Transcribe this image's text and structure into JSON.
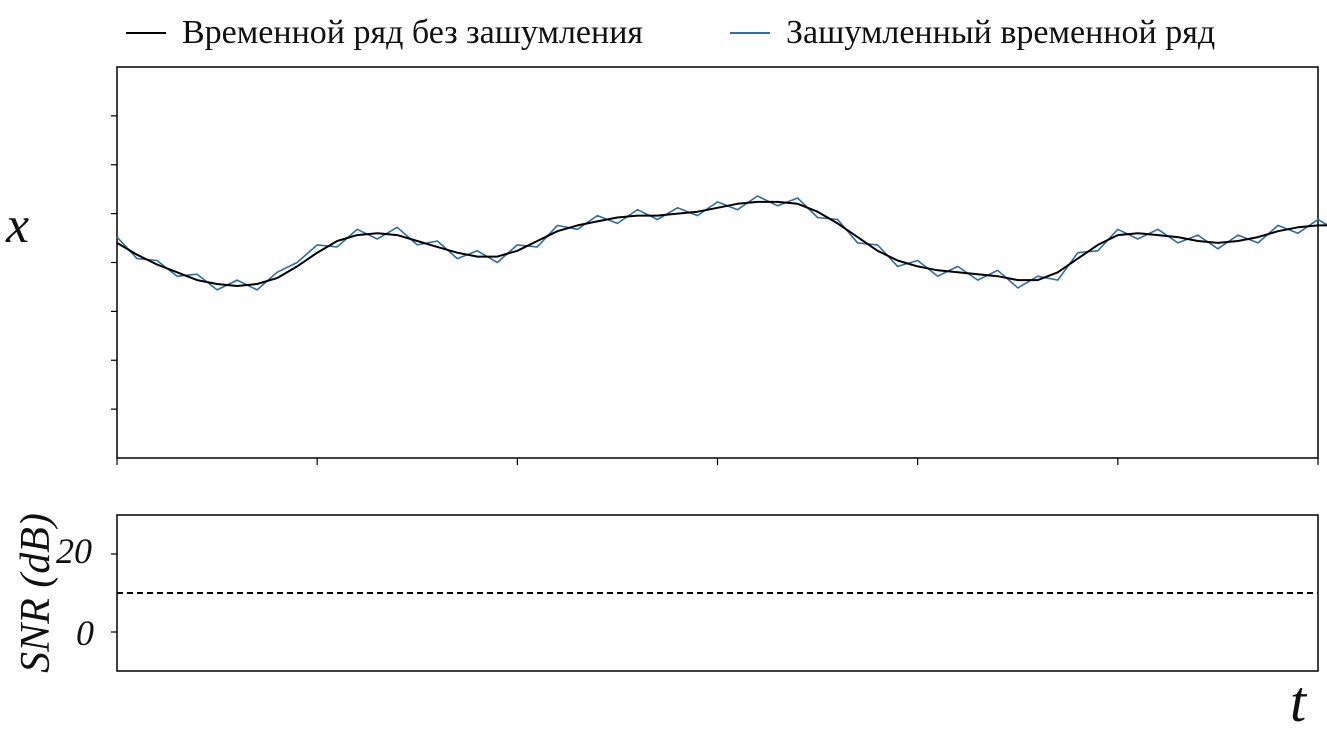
{
  "legend": {
    "clean_label": "Временной ряд без зашумления",
    "noisy_label": "Зашумленный временной ряд"
  },
  "axes": {
    "top_ylabel": "x",
    "bottom_ylabel": "SNR (dB)",
    "xlabel": "t",
    "bottom_ytick_20": "20",
    "bottom_ytick_0": "0"
  },
  "colors": {
    "clean": "#000000",
    "noisy": "#2e6ea6",
    "snr_line": "#000000"
  },
  "chart_data": [
    {
      "type": "line",
      "panel": "top",
      "xlabel": "t",
      "ylabel": "x",
      "xlim": [
        0,
        600
      ],
      "ylim": [
        -1.0,
        1.0
      ],
      "grid": false,
      "legend_position": "above",
      "x_step": 10,
      "series": [
        {
          "name": "Временной ряд без зашумления",
          "values": [
            0.1,
            0.04,
            -0.01,
            -0.05,
            -0.09,
            -0.11,
            -0.12,
            -0.11,
            -0.08,
            -0.02,
            0.05,
            0.11,
            0.14,
            0.15,
            0.14,
            0.11,
            0.08,
            0.05,
            0.03,
            0.03,
            0.06,
            0.11,
            0.16,
            0.19,
            0.21,
            0.23,
            0.24,
            0.24,
            0.25,
            0.26,
            0.28,
            0.3,
            0.31,
            0.31,
            0.3,
            0.26,
            0.2,
            0.13,
            0.06,
            0.01,
            -0.02,
            -0.04,
            -0.05,
            -0.06,
            -0.07,
            -0.09,
            -0.09,
            -0.05,
            0.02,
            0.09,
            0.14,
            0.15,
            0.14,
            0.13,
            0.11,
            0.1,
            0.11,
            0.13,
            0.16,
            0.18,
            0.19,
            0.19,
            0.2,
            0.22,
            0.24,
            0.26,
            0.27,
            0.29,
            0.3,
            0.31,
            0.29,
            0.25,
            0.2,
            0.15,
            0.1,
            0.05,
            0.01,
            -0.02,
            -0.05,
            -0.07,
            -0.09,
            -0.1,
            -0.08,
            -0.04,
            0.02,
            0.08,
            0.13,
            0.16,
            0.17,
            0.16,
            0.14,
            0.12,
            0.1,
            0.09,
            0.1,
            0.13,
            0.15,
            0.16,
            0.16,
            0.14,
            0.15,
            0.17,
            0.19,
            0.21,
            0.22,
            0.23,
            0.24,
            0.26,
            0.27,
            0.28,
            0.29,
            0.28,
            0.25,
            0.21,
            0.16,
            0.11,
            0.06,
            0.02,
            -0.01,
            -0.03,
            -0.06,
            -0.08,
            -0.1,
            -0.11,
            -0.12,
            -0.11,
            -0.08,
            -0.04,
            0.02,
            0.07,
            0.12,
            0.15,
            0.16,
            0.15,
            0.13,
            0.11,
            0.09,
            0.08,
            0.07,
            0.07,
            0.08,
            0.09,
            0.11,
            0.12,
            0.13,
            0.14,
            0.15,
            0.16,
            0.17,
            0.18
          ]
        },
        {
          "name": "Зашумленный временной ряд",
          "values": [
            0.13,
            0.02,
            0.01,
            -0.07,
            -0.06,
            -0.14,
            -0.09,
            -0.14,
            -0.05,
            0.0,
            0.09,
            0.08,
            0.17,
            0.12,
            0.18,
            0.09,
            0.11,
            0.02,
            0.06,
            0.0,
            0.09,
            0.08,
            0.19,
            0.17,
            0.24,
            0.2,
            0.27,
            0.22,
            0.28,
            0.24,
            0.31,
            0.27,
            0.34,
            0.29,
            0.33,
            0.23,
            0.22,
            0.1,
            0.09,
            -0.02,
            0.01,
            -0.07,
            -0.02,
            -0.09,
            -0.04,
            -0.13,
            -0.07,
            -0.09,
            0.05,
            0.06,
            0.17,
            0.12,
            0.17,
            0.1,
            0.14,
            0.07,
            0.14,
            0.1,
            0.19,
            0.15,
            0.22,
            0.16,
            0.23,
            0.19,
            0.27,
            0.23,
            0.3,
            0.26,
            0.33,
            0.28,
            0.32,
            0.22,
            0.23,
            0.12,
            0.13,
            0.02,
            0.04,
            -0.05,
            -0.02,
            -0.1,
            -0.06,
            -0.13,
            -0.05,
            -0.07,
            0.05,
            0.05,
            0.16,
            0.13,
            0.2,
            0.13,
            0.17,
            0.09,
            0.13,
            0.06,
            0.13,
            0.1,
            0.18,
            0.13,
            0.19,
            0.11,
            0.18,
            0.14,
            0.22,
            0.18,
            0.25,
            0.2,
            0.27,
            0.23,
            0.3,
            0.25,
            0.32,
            0.25,
            0.28,
            0.18,
            0.19,
            0.08,
            0.09,
            -0.01,
            0.02,
            -0.06,
            -0.03,
            -0.11,
            -0.07,
            -0.14,
            -0.09,
            -0.14,
            -0.05,
            -0.07,
            0.05,
            0.04,
            0.15,
            0.12,
            0.19,
            0.12,
            0.16,
            0.08,
            0.12,
            0.05,
            0.1,
            0.04,
            0.11,
            0.06,
            0.14,
            0.09,
            0.16,
            0.11,
            0.18,
            0.13,
            0.2,
            0.15
          ]
        }
      ]
    },
    {
      "type": "line",
      "panel": "bottom",
      "xlabel": "t",
      "ylabel": "SNR (dB)",
      "xlim": [
        0,
        600
      ],
      "ylim": [
        -10,
        30
      ],
      "yticks": [
        0,
        20
      ],
      "grid": false,
      "series": [
        {
          "name": "",
          "style": "dashed",
          "x": [
            0,
            600
          ],
          "values": [
            10,
            10
          ]
        }
      ]
    }
  ]
}
